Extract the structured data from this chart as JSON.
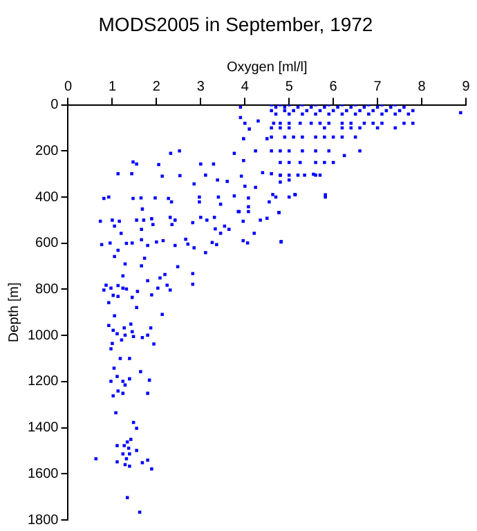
{
  "chart_data": {
    "type": "scatter",
    "title": "MODS2005 in September, 1972",
    "xlabel": "Oxygen [ml/l]",
    "ylabel": "Depth [m]",
    "xlim": [
      0,
      9
    ],
    "xticks": [
      0,
      1,
      2,
      3,
      4,
      5,
      6,
      7,
      8,
      9
    ],
    "ylim": [
      1800,
      0
    ],
    "yticks": [
      0,
      200,
      400,
      600,
      800,
      1000,
      1200,
      1400,
      1600,
      1800
    ],
    "grid": false,
    "legend": false,
    "marker": "square",
    "series": [
      {
        "color": "#0000ff",
        "x": [
          4.6,
          4.8,
          5.0,
          5.3,
          5.6,
          5.9,
          6.2,
          6.5,
          6.8,
          7.1,
          7.4,
          4.7,
          4.9,
          5.2,
          5.5,
          5.8,
          6.1,
          6.4,
          6.7,
          7.0,
          7.3,
          7.6,
          4.6,
          4.9,
          5.1,
          5.4,
          5.7,
          6.0,
          6.3,
          6.6,
          6.9,
          7.2,
          7.5,
          7.8,
          4.7,
          5.0,
          5.3,
          5.6,
          5.9,
          6.2,
          6.5,
          6.8,
          7.1,
          7.4,
          7.7,
          8.88,
          3.9,
          3.9,
          4.0,
          4.1,
          3.97,
          4.5,
          4.3,
          4.65,
          4.8,
          5.0,
          5.25,
          5.5,
          5.7,
          5.9,
          6.2,
          6.4,
          6.7,
          6.9,
          7.1,
          7.6,
          7.8,
          4.6,
          4.8,
          5.0,
          5.8,
          6.2,
          6.4,
          6.6,
          7.0,
          7.4,
          4.6,
          4.9,
          5.1,
          5.3,
          5.6,
          5.8,
          6.0,
          6.2,
          6.5,
          4.6,
          4.8,
          5.0,
          5.3,
          5.6,
          5.9,
          6.6,
          6.25,
          4.8,
          5.0,
          5.25,
          5.6,
          5.8,
          6.0,
          4.8,
          5.0,
          5.2,
          5.35,
          5.6,
          5.7,
          4.8,
          5.14,
          5.82,
          4.7,
          5.0,
          4.77,
          4.82,
          2.32,
          2.52,
          1.47,
          1.55,
          2.05,
          1.13,
          1.44,
          2.13,
          2.53,
          3.0,
          3.29,
          3.11,
          3.38,
          2.85,
          3.6,
          3.92,
          4.0,
          4.24,
          4.6,
          4.8,
          4.4,
          3.97,
          3.76,
          4.24,
          5.0,
          5.55,
          0.81,
          0.92,
          1.47,
          1.65,
          1.97,
          2.27,
          2.34,
          2.97,
          2.97,
          3.4,
          3.45,
          3.76,
          4.08,
          4.63,
          5.13,
          5.82,
          4.55,
          3.87,
          4.08,
          1.68,
          0.73,
          1.0,
          1.16,
          1.55,
          1.71,
          1.89,
          2.31,
          2.42,
          2.82,
          3.0,
          3.14,
          3.31,
          3.85,
          3.96,
          4.08,
          4.35,
          4.5,
          4.77,
          1.05,
          1.2,
          1.66,
          1.92,
          2.35,
          2.66,
          3.33,
          3.54,
          3.45,
          3.64,
          4.21,
          0.76,
          0.95,
          1.13,
          1.32,
          1.45,
          1.66,
          1.8,
          2.0,
          2.15,
          2.42,
          2.71,
          2.85,
          3.11,
          3.26,
          3.36,
          3.96,
          4.06,
          4.82,
          1.05,
          1.29,
          1.66,
          1.73,
          2.48,
          2.19,
          2.08,
          2.82,
          2.82,
          2.24,
          2.03,
          1.8,
          2.31,
          1.89,
          1.57,
          1.45,
          1.24,
          0.81,
          0.86,
          0.97,
          1.13,
          1.24,
          1.32,
          1.02,
          1.13,
          0.92,
          1.55,
          1.05,
          0.92,
          1.42,
          1.27,
          1.02,
          1.11,
          1.29,
          1.45,
          1.48,
          1.21,
          1.87,
          1.8,
          1.68,
          1.94,
          1.0,
          0.97,
          2.13,
          1.18,
          1.39,
          1.04,
          1.64,
          1.11,
          0.97,
          1.24,
          1.39,
          1.84,
          1.29,
          1.13,
          1.24,
          1.02,
          1.8,
          1.08,
          1.48,
          1.55,
          1.42,
          1.34,
          1.11,
          1.27,
          1.37,
          1.39,
          1.24,
          1.55,
          1.32,
          0.63,
          1.11,
          1.29,
          1.39,
          1.8,
          1.68,
          1.89,
          1.34,
          1.62
        ],
        "values": [
          0,
          0,
          0,
          0,
          0,
          0,
          0,
          0,
          0,
          0,
          0,
          10,
          10,
          10,
          10,
          10,
          10,
          10,
          10,
          10,
          10,
          10,
          25,
          25,
          25,
          25,
          25,
          25,
          25,
          25,
          25,
          25,
          25,
          25,
          40,
          40,
          40,
          40,
          40,
          40,
          40,
          40,
          40,
          40,
          40,
          34,
          10,
          55,
          80,
          105,
          147,
          147,
          70,
          80,
          80,
          80,
          80,
          80,
          80,
          80,
          80,
          80,
          80,
          80,
          80,
          80,
          80,
          100,
          100,
          100,
          100,
          100,
          100,
          100,
          100,
          100,
          140,
          140,
          140,
          140,
          140,
          140,
          140,
          140,
          140,
          200,
          200,
          200,
          200,
          200,
          200,
          200,
          220,
          250,
          250,
          250,
          250,
          250,
          250,
          305,
          305,
          305,
          305,
          305,
          305,
          335,
          390,
          390,
          400,
          400,
          467,
          595,
          210,
          200,
          248,
          257,
          259,
          299,
          299,
          309,
          307,
          257,
          257,
          305,
          326,
          343,
          332,
          309,
          353,
          358,
          299,
          305,
          294,
          242,
          210,
          200,
          326,
          301,
          406,
          400,
          406,
          404,
          404,
          406,
          421,
          400,
          421,
          400,
          431,
          395,
          404,
          389,
          389,
          400,
          421,
          463,
          442,
          452,
          505,
          500,
          505,
          500,
          500,
          494,
          488,
          500,
          511,
          488,
          500,
          488,
          463,
          505,
          463,
          500,
          492,
          467,
          526,
          557,
          540,
          519,
          519,
          583,
          538,
          526,
          557,
          540,
          557,
          606,
          599,
          631,
          601,
          599,
          585,
          610,
          595,
          589,
          610,
          604,
          620,
          641,
          597,
          606,
          589,
          599,
          593,
          658,
          690,
          698,
          665,
          702,
          736,
          751,
          732,
          778,
          782,
          795,
          763,
          803,
          824,
          809,
          835,
          742,
          803,
          782,
          795,
          784,
          795,
          799,
          826,
          831,
          858,
          879,
          915,
          957,
          951,
          967,
          978,
          993,
          999,
          984,
          1005,
          1020,
          967,
          999,
          1009,
          1037,
          1035,
          1058,
          909,
          1100,
          1100,
          1142,
          1157,
          1178,
          1199,
          1199,
          1188,
          1194,
          1215,
          1241,
          1251,
          1262,
          1251,
          1335,
          1377,
          1403,
          1451,
          1462,
          1478,
          1478,
          1489,
          1514,
          1514,
          1499,
          1535,
          1535,
          1548,
          1560,
          1567,
          1541,
          1552,
          1579,
          1703,
          1766
        ]
      }
    ]
  }
}
